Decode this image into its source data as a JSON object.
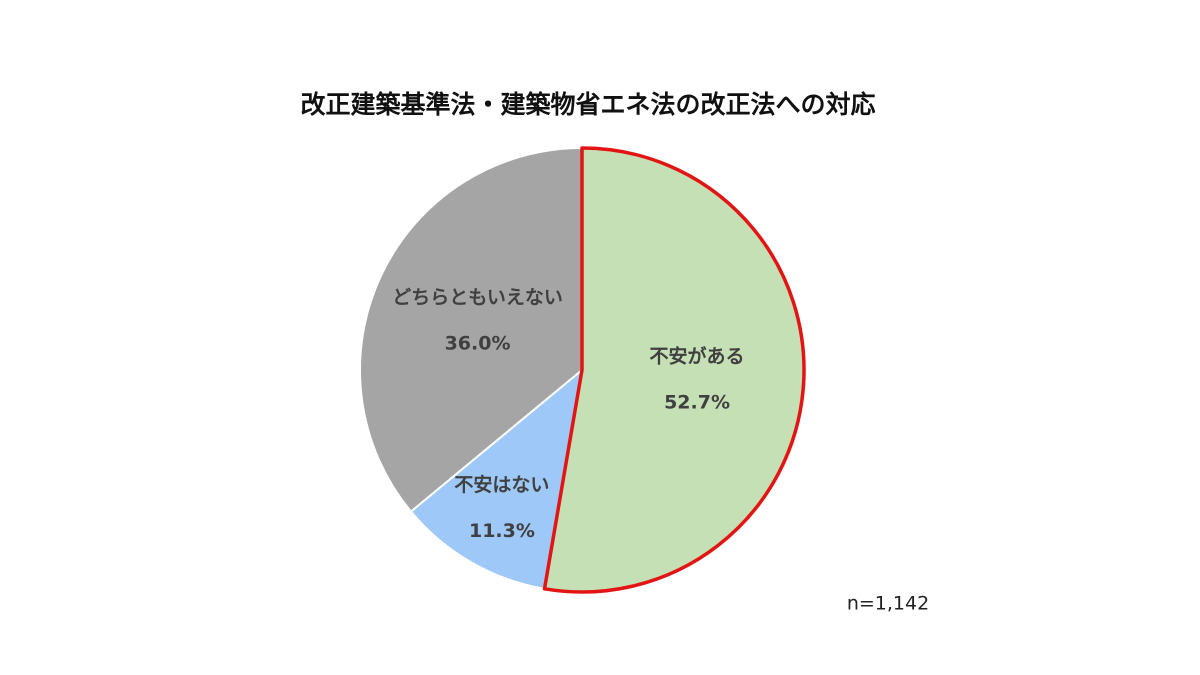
{
  "chart_data": {
    "type": "pie",
    "title": "改正建築基準法・建築物省エネ法の改正法への対応",
    "categories": [
      "不安がある",
      "不安はない",
      "どちらともいえない"
    ],
    "values": [
      52.7,
      11.3,
      36.0
    ],
    "value_labels": [
      "52.7%",
      "11.3%",
      "36.0%"
    ],
    "colors": [
      "#c5e0b4",
      "#9dc8f7",
      "#a5a5a5"
    ],
    "highlight": {
      "index": 0,
      "color": "#e31414"
    },
    "annotation": "n=1,142"
  }
}
